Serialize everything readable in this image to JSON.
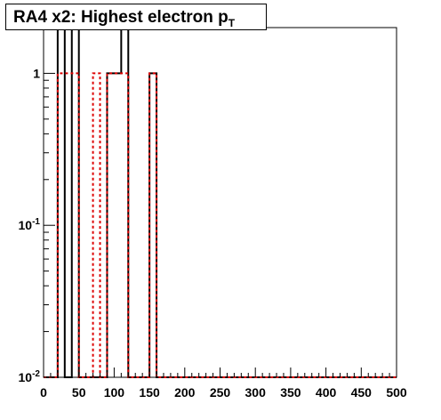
{
  "chart_data": {
    "type": "bar",
    "title_main": "RA4 x2: Highest electron p",
    "title_sub": "T",
    "xlim": [
      0,
      500
    ],
    "ylim": [
      0.01,
      2
    ],
    "log_y": true,
    "bin_width": 10,
    "x_ticks": [
      0,
      50,
      100,
      150,
      200,
      250,
      300,
      350,
      400,
      450,
      500
    ],
    "y_ticks": [
      {
        "value": 1,
        "label": "1",
        "exp": ""
      },
      {
        "value": 0.1,
        "label": "10",
        "exp": "-1"
      },
      {
        "value": 0.01,
        "label": "10",
        "exp": "-2"
      }
    ],
    "series": [
      {
        "color": "#000000",
        "dash": "",
        "bins": [
          {
            "x0": 20,
            "x1": 30,
            "y": 2
          },
          {
            "x0": 40,
            "x1": 50,
            "y": 2
          },
          {
            "x0": 90,
            "x1": 100,
            "y": 1
          },
          {
            "x0": 100,
            "x1": 110,
            "y": 1
          },
          {
            "x0": 110,
            "x1": 120,
            "y": 2
          },
          {
            "x0": 150,
            "x1": 160,
            "y": 1
          }
        ]
      },
      {
        "color": "#dd0000",
        "dash": "3,3",
        "bins": [
          {
            "x0": 20,
            "x1": 30,
            "y": 1
          },
          {
            "x0": 30,
            "x1": 40,
            "y": 1
          },
          {
            "x0": 40,
            "x1": 50,
            "y": 1
          },
          {
            "x0": 70,
            "x1": 80,
            "y": 1
          },
          {
            "x0": 90,
            "x1": 100,
            "y": 1
          },
          {
            "x0": 100,
            "x1": 110,
            "y": 1
          },
          {
            "x0": 110,
            "x1": 120,
            "y": 1
          },
          {
            "x0": 150,
            "x1": 160,
            "y": 1
          }
        ]
      }
    ]
  }
}
